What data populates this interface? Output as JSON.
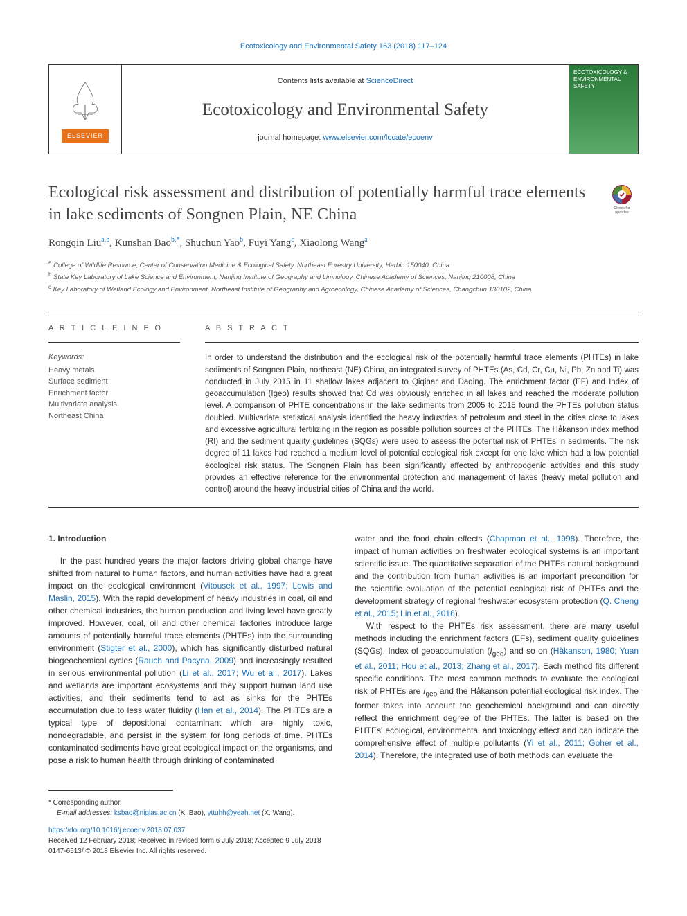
{
  "running_head": "Ecotoxicology and Environmental Safety 163 (2018) 117–124",
  "masthead": {
    "contents_prefix": "Contents lists available at ",
    "contents_link": "ScienceDirect",
    "journal": "Ecotoxicology and Environmental Safety",
    "homepage_prefix": "journal homepage: ",
    "homepage_link": "www.elsevier.com/locate/ecoenv",
    "publisher_label": "ELSEVIER",
    "cover_text": "ECOTOXICOLOGY\n& ENVIRONMENTAL\nSAFETY"
  },
  "title": "Ecological risk assessment and distribution of potentially harmful trace elements in lake sediments of Songnen Plain, NE China",
  "check_badge": "Check for updates",
  "authors_html": "Rongqin Liu<sup><a>a</a>,<a>b</a></sup>, Kunshan Bao<sup><a>b</a>,<a>*</a></sup>, Shuchun Yao<sup><a>b</a></sup>, Fuyi Yang<sup><a>c</a></sup>, Xiaolong Wang<sup><a>a</a></sup>",
  "affiliations": [
    "a College of Wildlife Resource, Center of Conservation Medicine & Ecological Safety, Northeast Forestry University, Harbin 150040, China",
    "b State Key Laboratory of Lake Science and Environment, Nanjing Institute of Geography and Limnology, Chinese Academy of Sciences, Nanjing 210008, China",
    "c Key Laboratory of Wetland Ecology and Environment, Northeast Institute of Geography and Agroecology, Chinese Academy of Sciences, Changchun 130102, China"
  ],
  "article_info_heading": "A R T I C L E  I N F O",
  "keywords_label": "Keywords:",
  "keywords": [
    "Heavy metals",
    "Surface sediment",
    "Enrichment factor",
    "Multivariate analysis",
    "Northeast China"
  ],
  "abstract_heading": "A B S T R A C T",
  "abstract": "In order to understand the distribution and the ecological risk of the potentially harmful trace elements (PHTEs) in lake sediments of Songnen Plain, northeast (NE) China, an integrated survey of PHTEs (As, Cd, Cr, Cu, Ni, Pb, Zn and Ti) was conducted in July 2015 in 11 shallow lakes adjacent to Qiqihar and Daqing. The enrichment factor (EF) and Index of geoaccumulation (Igeo) results showed that Cd was obviously enriched in all lakes and reached the moderate pollution level. A comparison of PHTE concentrations in the lake sediments from 2005 to 2015 found the PHTEs pollution status doubled. Multivariate statistical analysis identified the heavy industries of petroleum and steel in the cities close to lakes and excessive agricultural fertilizing in the region as possible pollution sources of the PHTEs. The Håkanson index method (RI) and the sediment quality guidelines (SQGs) were used to assess the potential risk of PHTEs in sediments. The risk degree of 11 lakes had reached a medium level of potential ecological risk except for one lake which had a low potential ecological risk status. The Songnen Plain has been significantly affected by anthropogenic activities and this study provides an effective reference for the environmental protection and management of lakes (heavy metal pollution and control) around the heavy industrial cities of China and the world.",
  "section1_heading": "1. Introduction",
  "body_left": "In the past hundred years the major factors driving global change have shifted from natural to human factors, and human activities have had a great impact on the ecological environment (<a>Vitousek et al., 1997; Lewis and Maslin, 2015</a>). With the rapid development of heavy industries in coal, oil and other chemical industries, the human production and living level have greatly improved. However, coal, oil and other chemical factories introduce large amounts of potentially harmful trace elements (PHTEs) into the surrounding environment (<a>Stigter et al., 2000</a>), which has significantly disturbed natural biogeochemical cycles (<a>Rauch and Pacyna, 2009</a>) and increasingly resulted in serious environmental pollution (<a>Li et al., 2017; Wu et al., 2017</a>). Lakes and wetlands are important ecosystems and they support human land use activities, and their sediments tend to act as sinks for the PHTEs accumulation due to less water fluidity (<a>Han et al., 2014</a>). The PHTEs are a typical type of depositional contaminant which are highly toxic, nondegradable, and persist in the system for long periods of time. PHTEs contaminated sediments have great ecological impact on the organisms, and pose a risk to human health through drinking of contaminated",
  "body_right_p1": "water and the food chain effects (<a>Chapman et al., 1998</a>). Therefore, the impact of human activities on freshwater ecological systems is an important scientific issue. The quantitative separation of the PHTEs natural background and the contribution from human activities is an important precondition for the scientific evaluation of the potential ecological risk of PHTEs and the development strategy of regional freshwater ecosystem protection (<a>Q. Cheng et al., 2015; Lin et al., 2016</a>).",
  "body_right_p2": "With respect to the PHTEs risk assessment, there are many useful methods including the enrichment factors (EFs), sediment quality guidelines (SQGs), Index of geoaccumulation (<em>I</em><sub>geo</sub>) and so on (<a>Håkanson, 1980; Yuan et al., 2011; Hou et al., 2013; Zhang et al., 2017</a>). Each method fits different specific conditions. The most common methods to evaluate the ecological risk of PHTEs are <em>I</em><sub>geo</sub> and the Håkanson potential ecological risk index. The former takes into account the geochemical background and can directly reflect the enrichment degree of the PHTEs. The latter is based on the PHTEs' ecological, environmental and toxicology effect and can indicate the comprehensive effect of multiple pollutants (<a>Yi et al., 2011; Goher et al., 2014</a>). Therefore, the integrated use of both methods can evaluate the",
  "footer": {
    "corresponding": "* Corresponding author.",
    "email_label": "E-mail addresses:",
    "email1": "ksbao@niglas.ac.cn",
    "email1_name": " (K. Bao), ",
    "email2": "yttuhh@yeah.net",
    "email2_name": " (X. Wang).",
    "doi": "https://doi.org/10.1016/j.ecoenv.2018.07.037",
    "received": "Received 12 February 2018; Received in revised form 6 July 2018; Accepted 9 July 2018",
    "copyright": "0147-6513/ © 2018 Elsevier Inc. All rights reserved."
  },
  "colors": {
    "link": "#1a6fb8",
    "orange": "#e8711b",
    "text": "#333333",
    "muted": "#555555",
    "cover_top": "#2a7a3a",
    "cover_bot": "#5aaa6a"
  }
}
